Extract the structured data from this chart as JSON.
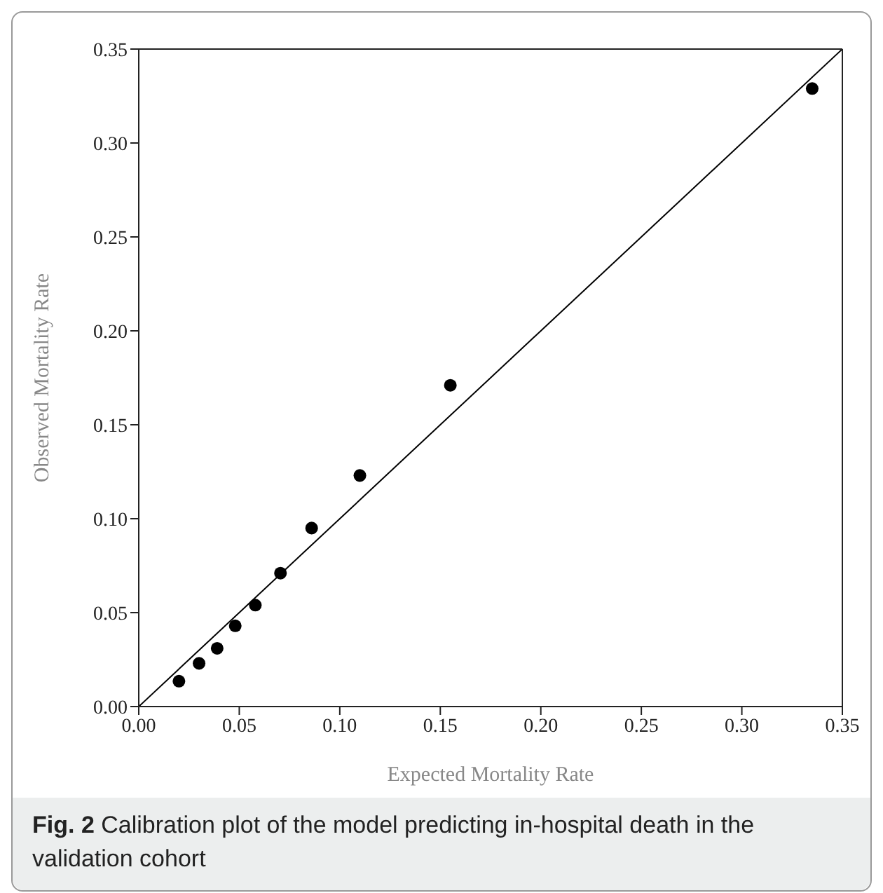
{
  "chart_data": {
    "type": "scatter",
    "xlabel": "Expected Mortality Rate",
    "ylabel": "Observed Mortality Rate",
    "annotations": [
      "Fig. 2 Calibration plot of the model predicting in-hospital death in the validation cohort"
    ],
    "series": [
      {
        "color": "#000000",
        "x": [
          0.02,
          0.03,
          0.039,
          0.048,
          0.058,
          0.0705,
          0.086,
          0.11,
          0.155,
          0.335
        ],
        "values": [
          0.0135,
          0.023,
          0.031,
          0.043,
          0.054,
          0.071,
          0.095,
          0.123,
          0.171,
          0.329
        ],
        "marker": "circle"
      },
      {
        "type": "line",
        "color": "#000000",
        "x": [
          0,
          0.35
        ],
        "values": [
          0,
          0.35
        ],
        "marker": "none"
      }
    ],
    "xlim": [
      0,
      0.35
    ],
    "ylim": [
      0,
      0.35
    ],
    "xticks": [
      {
        "value": 0,
        "label": "0.00"
      },
      {
        "value": 0.05,
        "label": "0.05"
      },
      {
        "value": 0.1,
        "label": "0.10"
      },
      {
        "value": 0.15,
        "label": "0.15"
      },
      {
        "value": 0.2,
        "label": "0.20"
      },
      {
        "value": 0.25,
        "label": "0.25"
      },
      {
        "value": 0.3,
        "label": "0.30"
      },
      {
        "value": 0.35,
        "label": "0.35"
      }
    ],
    "yticks": [
      {
        "value": 0,
        "label": "0.00"
      },
      {
        "value": 0.05,
        "label": "0.05"
      },
      {
        "value": 0.1,
        "label": "0.10"
      },
      {
        "value": 0.15,
        "label": "0.15"
      },
      {
        "value": 0.2,
        "label": "0.20"
      },
      {
        "value": 0.25,
        "label": "0.25"
      },
      {
        "value": 0.3,
        "label": "0.30"
      },
      {
        "value": 0.35,
        "label": "0.35"
      }
    ]
  }
}
